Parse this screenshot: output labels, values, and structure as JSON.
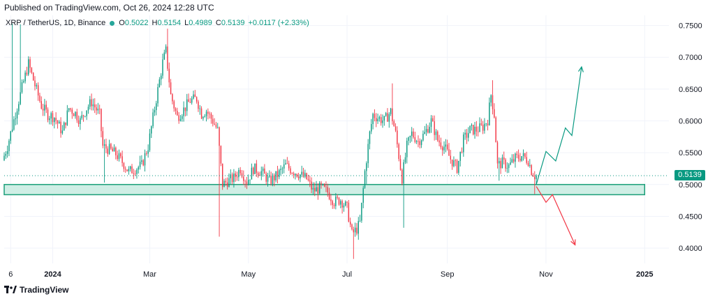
{
  "header": {
    "published": "Published on TradingView.com, Oct 26, 2024 12:28 UTC"
  },
  "legend": {
    "symbol": "XRP / TetherUS, 1D, Binance",
    "open_label": "O",
    "open": "0.5022",
    "high_label": "H",
    "high": "0.5154",
    "low_label": "L",
    "low": "0.4989",
    "close_label": "C",
    "close": "0.5139",
    "change": "+0.0117 (+2.33%)"
  },
  "footer": {
    "brand": "TradingView",
    "logo_icon": "tradingview-logo-icon"
  },
  "colors": {
    "up": "#089981",
    "down": "#f23645",
    "zone_fill": "#cfeee5",
    "zone_stroke": "#1a9e78",
    "grid": "#f0f3fa"
  },
  "chart_data": {
    "type": "candlestick",
    "last_price": "0.5139",
    "y_ticks": [
      "0.7500",
      "0.7000",
      "0.6500",
      "0.6000",
      "0.5500",
      "0.5000",
      "0.4500",
      "0.4000"
    ],
    "y_values": [
      0.75,
      0.7,
      0.65,
      0.6,
      0.55,
      0.5,
      0.45,
      0.4
    ],
    "ylim": [
      0.376,
      0.766
    ],
    "x_ticks": [
      {
        "label": "6",
        "date": "2023-12-06"
      },
      {
        "label": "2024",
        "date": "2024-01-01"
      },
      {
        "label": "Mar",
        "date": "2024-03-01"
      },
      {
        "label": "May",
        "date": "2024-05-01"
      },
      {
        "label": "Jul",
        "date": "2024-07-01"
      },
      {
        "label": "Sep",
        "date": "2024-09-01"
      },
      {
        "label": "Nov",
        "date": "2024-11-01"
      },
      {
        "label": "2025",
        "date": "2025-01-01"
      }
    ],
    "xlim": [
      "2023-12-02",
      "2025-01-16"
    ],
    "grid": true,
    "support_zone": {
      "low": 0.484,
      "high": 0.5,
      "from": "2023-12-02",
      "to": "2025-01-01"
    },
    "projections": [
      {
        "color": "up",
        "points": [
          [
            "2024-10-26",
            0.5
          ],
          [
            "2024-11-01",
            0.552
          ],
          [
            "2024-11-07",
            0.537
          ],
          [
            "2024-11-13",
            0.589
          ],
          [
            "2024-11-17",
            0.577
          ],
          [
            "2024-11-23",
            0.685
          ]
        ]
      },
      {
        "color": "down",
        "points": [
          [
            "2024-10-26",
            0.497
          ],
          [
            "2024-11-01",
            0.472
          ],
          [
            "2024-11-05",
            0.484
          ],
          [
            "2024-11-19",
            0.405
          ]
        ]
      }
    ],
    "anchors": [
      [
        "2023-12-02",
        0.538
      ],
      [
        "2023-12-05",
        0.56
      ],
      [
        "2023-12-10",
        0.612
      ],
      [
        "2023-12-14",
        0.652
      ],
      [
        "2023-12-18",
        0.69
      ],
      [
        "2023-12-22",
        0.656
      ],
      [
        "2023-12-26",
        0.624
      ],
      [
        "2023-12-30",
        0.61
      ],
      [
        "2024-01-03",
        0.606
      ],
      [
        "2024-01-08",
        0.582
      ],
      [
        "2024-01-12",
        0.62
      ],
      [
        "2024-01-16",
        0.612
      ],
      [
        "2024-01-19",
        0.6
      ],
      [
        "2024-01-23",
        0.62
      ],
      [
        "2024-01-26",
        0.63
      ],
      [
        "2024-01-31",
        0.61
      ],
      [
        "2024-02-02",
        0.56
      ],
      [
        "2024-02-06",
        0.555
      ],
      [
        "2024-02-10",
        0.548
      ],
      [
        "2024-02-15",
        0.532
      ],
      [
        "2024-02-18",
        0.52
      ],
      [
        "2024-02-22",
        0.525
      ],
      [
        "2024-02-26",
        0.53
      ],
      [
        "2024-03-01",
        0.56
      ],
      [
        "2024-03-05",
        0.62
      ],
      [
        "2024-03-10",
        0.692
      ],
      [
        "2024-03-12",
        0.71
      ],
      [
        "2024-03-15",
        0.64
      ],
      [
        "2024-03-19",
        0.606
      ],
      [
        "2024-03-23",
        0.618
      ],
      [
        "2024-03-27",
        0.632
      ],
      [
        "2024-03-31",
        0.635
      ],
      [
        "2024-04-03",
        0.611
      ],
      [
        "2024-04-06",
        0.616
      ],
      [
        "2024-04-10",
        0.6
      ],
      [
        "2024-04-13",
        0.585
      ],
      [
        "2024-04-16",
        0.5
      ],
      [
        "2024-04-19",
        0.505
      ],
      [
        "2024-04-23",
        0.51
      ],
      [
        "2024-04-27",
        0.525
      ],
      [
        "2024-05-01",
        0.504
      ],
      [
        "2024-05-05",
        0.525
      ],
      [
        "2024-05-10",
        0.52
      ],
      [
        "2024-05-15",
        0.505
      ],
      [
        "2024-05-20",
        0.515
      ],
      [
        "2024-05-25",
        0.53
      ],
      [
        "2024-05-29",
        0.522
      ],
      [
        "2024-06-02",
        0.517
      ],
      [
        "2024-06-07",
        0.509
      ],
      [
        "2024-06-11",
        0.49
      ],
      [
        "2024-06-16",
        0.495
      ],
      [
        "2024-06-20",
        0.488
      ],
      [
        "2024-06-24",
        0.473
      ],
      [
        "2024-06-28",
        0.476
      ],
      [
        "2024-07-02",
        0.463
      ],
      [
        "2024-07-05",
        0.422
      ],
      [
        "2024-07-08",
        0.43
      ],
      [
        "2024-07-10",
        0.44
      ],
      [
        "2024-07-13",
        0.52
      ],
      [
        "2024-07-16",
        0.58
      ],
      [
        "2024-07-18",
        0.61
      ],
      [
        "2024-07-21",
        0.605
      ],
      [
        "2024-07-25",
        0.6
      ],
      [
        "2024-07-29",
        0.615
      ],
      [
        "2024-08-01",
        0.58
      ],
      [
        "2024-08-05",
        0.51
      ],
      [
        "2024-08-08",
        0.56
      ],
      [
        "2024-08-11",
        0.58
      ],
      [
        "2024-08-15",
        0.568
      ],
      [
        "2024-08-19",
        0.58
      ],
      [
        "2024-08-23",
        0.6
      ],
      [
        "2024-08-27",
        0.57
      ],
      [
        "2024-08-31",
        0.56
      ],
      [
        "2024-09-04",
        0.54
      ],
      [
        "2024-09-08",
        0.526
      ],
      [
        "2024-09-12",
        0.57
      ],
      [
        "2024-09-16",
        0.586
      ],
      [
        "2024-09-20",
        0.586
      ],
      [
        "2024-09-24",
        0.591
      ],
      [
        "2024-09-27",
        0.602
      ],
      [
        "2024-09-29",
        0.641
      ],
      [
        "2024-10-01",
        0.61
      ],
      [
        "2024-10-03",
        0.53
      ],
      [
        "2024-10-06",
        0.534
      ],
      [
        "2024-10-10",
        0.529
      ],
      [
        "2024-10-14",
        0.541
      ],
      [
        "2024-10-18",
        0.545
      ],
      [
        "2024-10-22",
        0.538
      ],
      [
        "2024-10-24",
        0.522
      ],
      [
        "2024-10-26",
        0.514
      ]
    ],
    "wick_extremes": [
      [
        "2023-12-07",
        0.753
      ],
      [
        "2023-12-12",
        0.752
      ],
      [
        "2024-03-12",
        0.745
      ],
      [
        "2024-02-02",
        0.503
      ],
      [
        "2024-04-13",
        0.418
      ],
      [
        "2024-07-05",
        0.383
      ],
      [
        "2024-07-13",
        0.501
      ],
      [
        "2024-08-05",
        0.432
      ],
      [
        "2024-07-29",
        0.659
      ],
      [
        "2024-09-29",
        0.664
      ],
      [
        "2024-10-03",
        0.506
      ],
      [
        "2024-10-25",
        0.485
      ]
    ]
  }
}
